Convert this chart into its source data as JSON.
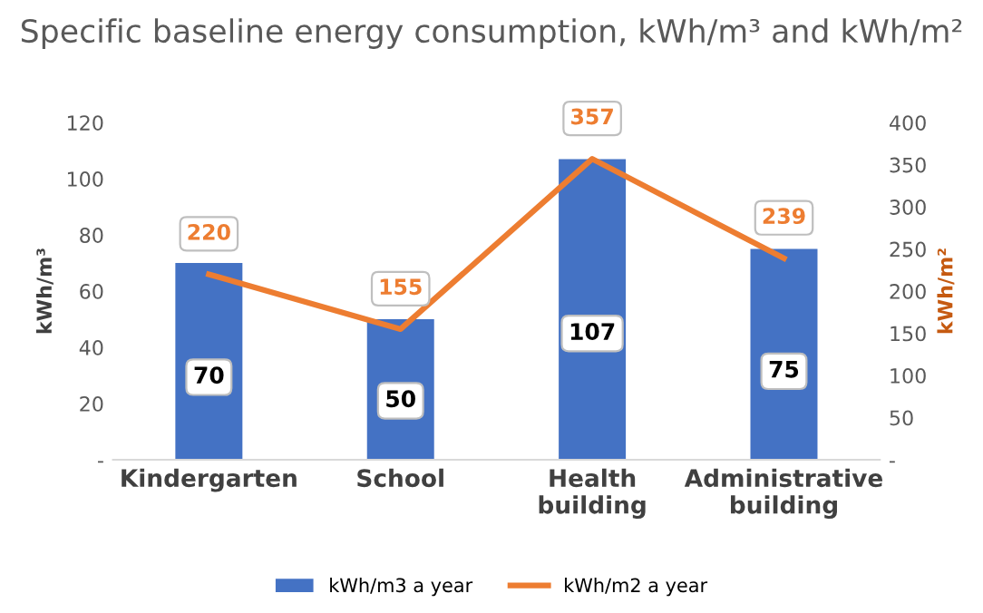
{
  "chart_data": {
    "type": "bar",
    "title": "Specific baseline energy consumption, kWh/m³ and kWh/m²",
    "categories": [
      "Kindergarten",
      "School",
      "Health\nbuilding",
      "Administrative\nbuilding"
    ],
    "series": [
      {
        "name": "kWh/m3 a year",
        "color": "#4472c4",
        "values": [
          70,
          50,
          107,
          75
        ]
      },
      {
        "name": "kWh/m2 a year",
        "type": "line",
        "axis": "y2",
        "color": "#ed7d31",
        "values": [
          220,
          155,
          357,
          239
        ]
      }
    ],
    "ylabel": "kWh/m³",
    "y2label": "kWh/m²",
    "ylim": [
      0,
      120
    ],
    "yticks": [
      {
        "value": 0,
        "label": "-"
      },
      20,
      40,
      60,
      80,
      100,
      120
    ],
    "y2lim": [
      0,
      400
    ],
    "y2ticks": [
      {
        "value": 0,
        "label": "-"
      },
      50,
      100,
      150,
      200,
      250,
      300,
      350,
      400
    ],
    "data_labels": true,
    "grid": false,
    "legend": "bottom",
    "marker": "none",
    "line_style": "solid"
  }
}
